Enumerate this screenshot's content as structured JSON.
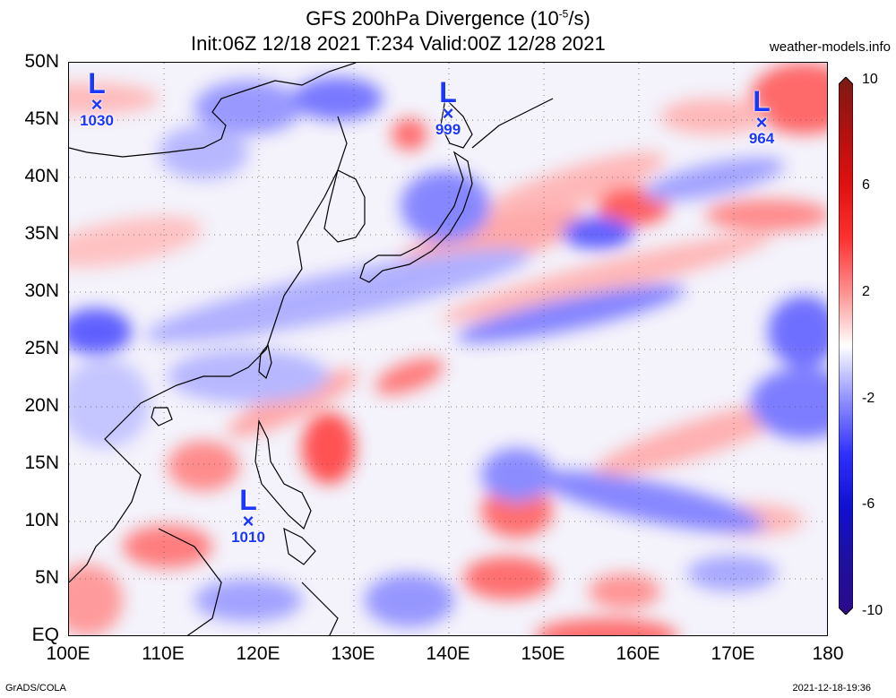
{
  "header": {
    "title_main": "GFS 200hPa Divergence (10",
    "title_exp": "-5",
    "title_unit": "/s)",
    "title_line2": "Init:06Z 12/18 2021 T:234 Valid:00Z 12/28 2021",
    "credit": "weather-models.info"
  },
  "footer": {
    "left": "GrADS/COLA",
    "right": "2021-12-18-19:36"
  },
  "axes": {
    "lat_labels": [
      "50N",
      "45N",
      "40N",
      "35N",
      "30N",
      "25N",
      "20N",
      "15N",
      "10N",
      "5N",
      "EQ"
    ],
    "lon_labels": [
      "100E",
      "110E",
      "120E",
      "130E",
      "140E",
      "150E",
      "160E",
      "170E",
      "180"
    ]
  },
  "colorbar": {
    "labels": [
      "10",
      "6",
      "2",
      "-2",
      "-6",
      "-10"
    ],
    "colors": [
      "#7b1a14",
      "#b01010",
      "#e01010",
      "#ff3030",
      "#ff8080",
      "#ffc8c8",
      "#ffffff",
      "#c8c8ff",
      "#8080ff",
      "#3030ff",
      "#1010d0",
      "#2a0a8a"
    ]
  },
  "lows": [
    {
      "label": "L",
      "pressure": "1030"
    },
    {
      "label": "L",
      "pressure": "999"
    },
    {
      "label": "L",
      "pressure": "964"
    },
    {
      "label": "L",
      "pressure": "1010"
    }
  ]
}
